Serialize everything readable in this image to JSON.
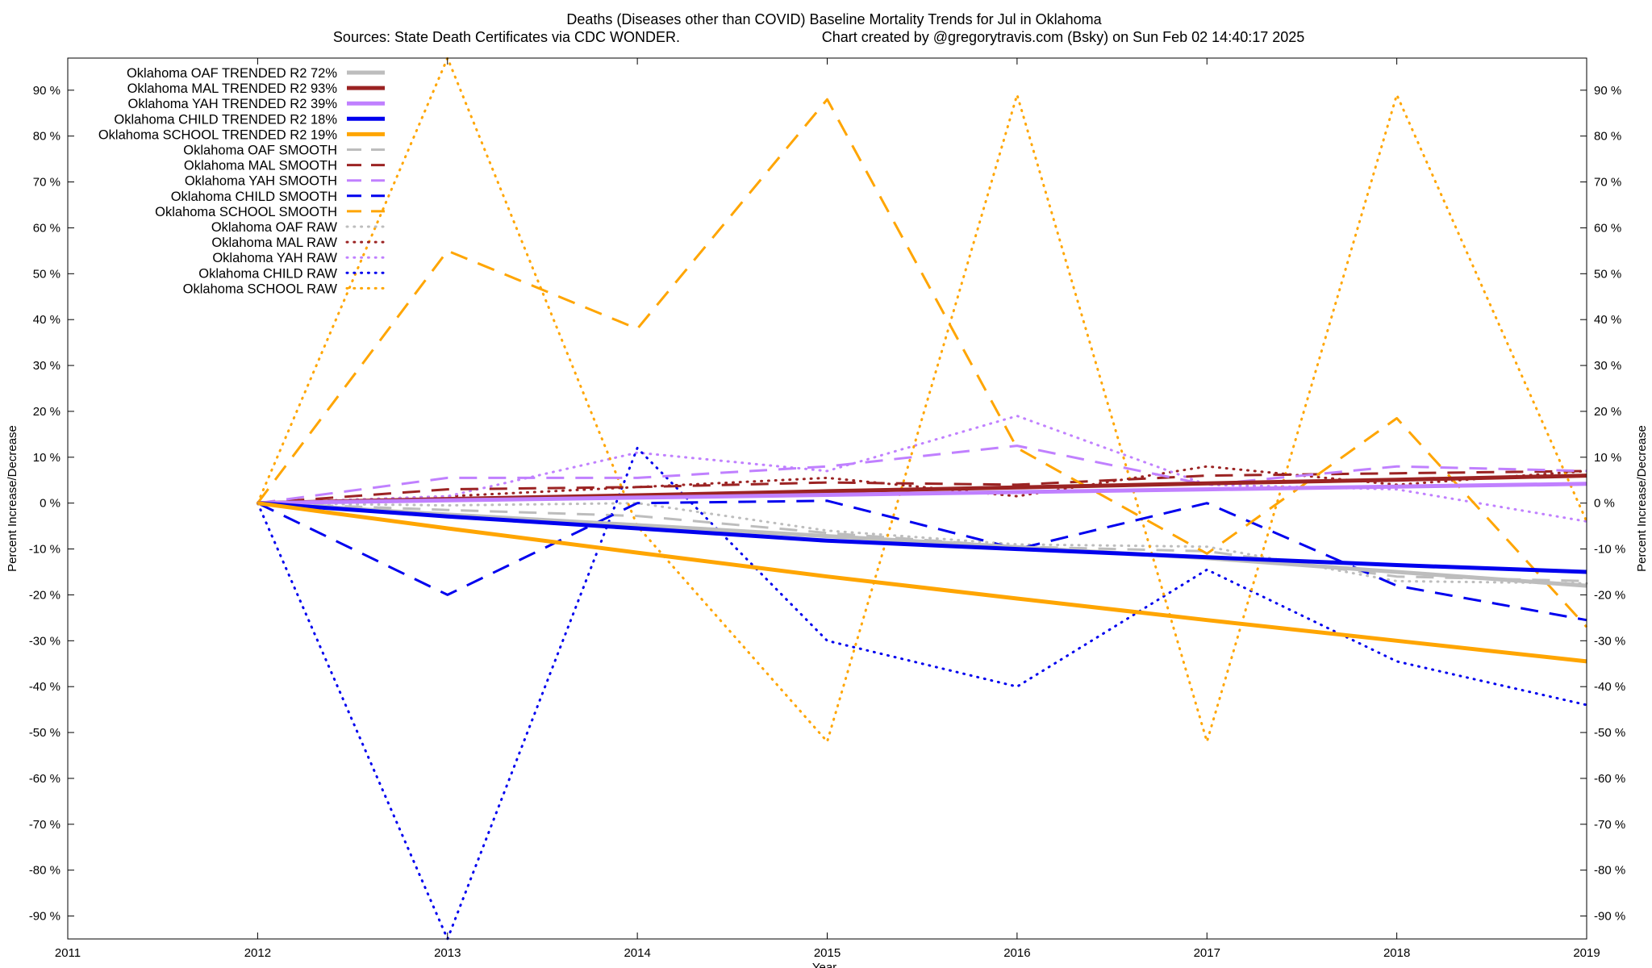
{
  "chart_data": {
    "type": "line",
    "title": "Deaths (Diseases other than COVID)  Baseline Mortality Trends for Jul in Oklahoma",
    "subtitle_left": "Sources: State Death Certificates via CDC WONDER.",
    "subtitle_right": "Chart created by @gregorytravis.com (Bsky) on Sun Feb 02 14:40:17 2025",
    "xlabel": "Year",
    "ylabel": "Percent Increase/Decrease",
    "y2label": "Percent Increase/Decrease",
    "xlim": [
      2011,
      2019
    ],
    "ylim": [
      -95,
      97
    ],
    "x_ticks": [
      2011,
      2012,
      2013,
      2014,
      2015,
      2016,
      2017,
      2018,
      2019
    ],
    "x_tick_labels": [
      "2011",
      "2012",
      "2013",
      "2014",
      "2015",
      "2016",
      "2017",
      "2018",
      "2019"
    ],
    "y_ticks": [
      90,
      80,
      70,
      60,
      50,
      40,
      30,
      20,
      10,
      0,
      -10,
      -20,
      -30,
      -40,
      -50,
      -60,
      -70,
      -80,
      -90
    ],
    "y_tick_labels": [
      "90 %",
      "80 %",
      "70 %",
      "60 %",
      "50 %",
      "40 %",
      "30 %",
      "20 %",
      "10 %",
      "0 %",
      "-10 %",
      "-20 %",
      "-30 %",
      "-40 %",
      "-50 %",
      "-60 %",
      "-70 %",
      "-80 %",
      "-90 %"
    ],
    "grid": false,
    "legend_position": "top-left",
    "x": [
      2012,
      2013,
      2014,
      2015,
      2016,
      2017,
      2018,
      2019
    ],
    "series": [
      {
        "name": "Oklahoma OAF TRENDED R2  72%",
        "color": "#bdbdbd",
        "style": "solid",
        "values": [
          0,
          -2.5,
          -4.8,
          -7.2,
          -9.6,
          -12.0,
          -15.0,
          -18.0
        ]
      },
      {
        "name": "Oklahoma MAL TRENDED R2  93%",
        "color": "#9b2323",
        "style": "solid",
        "values": [
          0,
          0.9,
          1.7,
          2.6,
          3.4,
          4.3,
          5.1,
          6.0
        ]
      },
      {
        "name": "Oklahoma YAH TRENDED R2  39%",
        "color": "#c080ff",
        "style": "solid",
        "values": [
          0,
          0.6,
          1.2,
          1.8,
          2.4,
          3.0,
          3.6,
          4.2
        ]
      },
      {
        "name": "Oklahoma CHILD TRENDED R2  18%",
        "color": "#0000ee",
        "style": "solid",
        "values": [
          0,
          -2.9,
          -5.5,
          -8.2,
          -10.0,
          -11.8,
          -13.5,
          -15.0
        ]
      },
      {
        "name": "Oklahoma SCHOOL TRENDED R2  19%",
        "color": "#ffa500",
        "style": "solid",
        "values": [
          0,
          -5.5,
          -10.8,
          -16.0,
          -20.8,
          -25.5,
          -30.0,
          -34.5
        ]
      },
      {
        "name": "Oklahoma OAF SMOOTH",
        "color": "#bdbdbd",
        "style": "dashed",
        "values": [
          0,
          -1.5,
          -2.8,
          -6.5,
          -9.5,
          -10.5,
          -16.0,
          -17.0
        ]
      },
      {
        "name": "Oklahoma MAL SMOOTH",
        "color": "#9b2323",
        "style": "dashed",
        "values": [
          0,
          3.0,
          3.5,
          4.5,
          4.0,
          6.0,
          6.5,
          7.0
        ]
      },
      {
        "name": "Oklahoma YAH SMOOTH",
        "color": "#c080ff",
        "style": "dashed",
        "values": [
          0,
          5.5,
          5.5,
          8.0,
          12.5,
          4.0,
          8.0,
          7.0
        ]
      },
      {
        "name": "Oklahoma CHILD SMOOTH",
        "color": "#0000ee",
        "style": "dashed",
        "values": [
          0,
          -20.0,
          0,
          0.5,
          -10.0,
          0,
          -18.0,
          -25.5
        ]
      },
      {
        "name": "Oklahoma SCHOOL SMOOTH",
        "color": "#ffa500",
        "style": "dashed",
        "values": [
          0,
          55.0,
          38.0,
          88.0,
          12.0,
          -11.0,
          18.5,
          -27.0
        ]
      },
      {
        "name": "Oklahoma OAF RAW",
        "color": "#bdbdbd",
        "style": "dotted",
        "values": [
          0,
          -0.5,
          0,
          -6.0,
          -9.0,
          -9.5,
          -17.0,
          -17.5
        ]
      },
      {
        "name": "Oklahoma MAL RAW",
        "color": "#9b2323",
        "style": "dotted",
        "values": [
          0,
          1.5,
          3.5,
          5.5,
          1.5,
          8.0,
          4.0,
          7.0
        ]
      },
      {
        "name": "Oklahoma YAH RAW",
        "color": "#c080ff",
        "style": "dotted",
        "values": [
          0,
          1.5,
          11.0,
          7.0,
          19.0,
          4.0,
          3.0,
          -4.0
        ]
      },
      {
        "name": "Oklahoma CHILD RAW",
        "color": "#0000ee",
        "style": "dotted",
        "values": [
          0,
          -95.0,
          12.0,
          -30.0,
          -40.0,
          -14.5,
          -34.5,
          -44.0
        ]
      },
      {
        "name": "Oklahoma SCHOOL RAW",
        "color": "#ffa500",
        "style": "dotted",
        "values": [
          0,
          97.0,
          -5.0,
          -52.0,
          89.0,
          -52.0,
          89.0,
          -4.0
        ]
      }
    ]
  }
}
